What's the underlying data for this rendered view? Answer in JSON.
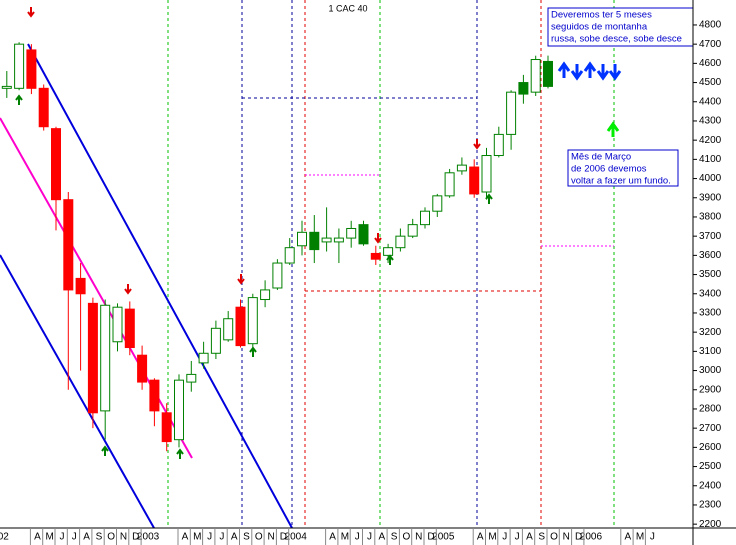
{
  "chart_data": {
    "type": "candlestick",
    "title": "1 CAC 40",
    "categories": [
      "002",
      null,
      null,
      "A",
      "M",
      "J",
      "J",
      "A",
      "S",
      "O",
      "N",
      "D",
      "2003",
      null,
      null,
      "A",
      "M",
      "J",
      "J",
      "A",
      "S",
      "O",
      "N",
      "D",
      "2004",
      null,
      null,
      "A",
      "M",
      "J",
      "J",
      "A",
      "S",
      "O",
      "N",
      "D",
      "2005",
      null,
      null,
      "A",
      "M",
      "J",
      "J",
      "A",
      "S",
      "O",
      "N",
      "D",
      "2006",
      null,
      null,
      "A",
      "M",
      "J"
    ],
    "open": [
      null,
      4470,
      4470,
      4670,
      4470,
      4260,
      3890,
      3480,
      3350,
      2790,
      3150,
      3320,
      3080,
      2950,
      2780,
      2640,
      2940,
      3040,
      3090,
      3160,
      3330,
      3140,
      3370,
      3430,
      3560,
      3650,
      3720,
      3670,
      3670,
      3690,
      3760,
      3610,
      3600,
      3640,
      3700,
      3760,
      3830,
      3910,
      4040,
      4060,
      3930,
      4120,
      4230,
      4500,
      4450,
      4610,
      null,
      null,
      null,
      null,
      null,
      null,
      null,
      null
    ],
    "high": [
      null,
      4560,
      4710,
      4700,
      4490,
      4270,
      3930,
      3560,
      3380,
      3370,
      3350,
      3360,
      3130,
      2960,
      2830,
      2980,
      3050,
      3150,
      3260,
      3310,
      3370,
      3400,
      3470,
      3580,
      3690,
      3780,
      3810,
      3850,
      3740,
      3780,
      3780,
      3650,
      3660,
      3740,
      3790,
      3850,
      3920,
      4050,
      4110,
      4100,
      4160,
      4270,
      4460,
      4540,
      4640,
      4640,
      null,
      null,
      null,
      null,
      null,
      null,
      null,
      null
    ],
    "low": [
      null,
      4420,
      4460,
      4440,
      4250,
      3730,
      2900,
      3000,
      2700,
      2640,
      3100,
      3080,
      2900,
      2710,
      2580,
      2600,
      2890,
      3010,
      3060,
      3150,
      3120,
      3120,
      3330,
      3420,
      3550,
      3600,
      3560,
      3620,
      3560,
      3640,
      3650,
      3550,
      3560,
      3620,
      3690,
      3740,
      3800,
      3900,
      4020,
      3900,
      3890,
      4110,
      4150,
      4390,
      4430,
      4470,
      null,
      null,
      null,
      null,
      null,
      null,
      null,
      null
    ],
    "close": [
      null,
      4480,
      4700,
      4470,
      4270,
      3890,
      3420,
      3400,
      2780,
      3340,
      3330,
      3120,
      2940,
      2790,
      2630,
      2950,
      2980,
      3090,
      3220,
      3270,
      3130,
      3380,
      3420,
      3560,
      3640,
      3720,
      3630,
      3690,
      3690,
      3740,
      3660,
      3580,
      3640,
      3700,
      3760,
      3830,
      3910,
      4030,
      4070,
      3920,
      4120,
      4230,
      4450,
      4440,
      4620,
      4480,
      null,
      null,
      null,
      null,
      null,
      null,
      null,
      null
    ],
    "candle_colors": [
      null,
      "#ffffff",
      "#ffffff",
      "#ff0000",
      "#ff0000",
      "#ff0000",
      "#ff0000",
      "#ff0000",
      "#ff0000",
      "#ffffff",
      "#ffffff",
      "#ff0000",
      "#ff0000",
      "#ff0000",
      "#ff0000",
      "#ffffff",
      "#ffffff",
      "#ffffff",
      "#ffffff",
      "#ffffff",
      "#ff0000",
      "#ffffff",
      "#ffffff",
      "#ffffff",
      "#ffffff",
      "#ffffff",
      "#008000",
      "#ffffff",
      "#ffffff",
      "#ffffff",
      "#008000",
      "#ff0000",
      "#ffffff",
      "#ffffff",
      "#ffffff",
      "#ffffff",
      "#ffffff",
      "#ffffff",
      "#ffffff",
      "#ff0000",
      "#ffffff",
      "#ffffff",
      "#ffffff",
      "#008000",
      "#ffffff",
      "#008000",
      null,
      null,
      null,
      null,
      null,
      null,
      null,
      null
    ],
    "outline_color": "#008000",
    "ylim": [
      2180,
      4930
    ],
    "yticks": [
      2200,
      2300,
      2400,
      2500,
      2600,
      2700,
      2800,
      2900,
      3000,
      3100,
      3200,
      3300,
      3400,
      3500,
      3600,
      3700,
      3800,
      3900,
      4000,
      4100,
      4200,
      4300,
      4400,
      4500,
      4600,
      4700,
      4800
    ],
    "annotations": [
      [
        "Deveremos ter 5 meses",
        "seguidos de montanha",
        "russa, sobe desce, sobe desce"
      ],
      [
        "Mês de Março",
        "de 2006 devemos",
        "voltar a fazer um fundo."
      ]
    ]
  }
}
